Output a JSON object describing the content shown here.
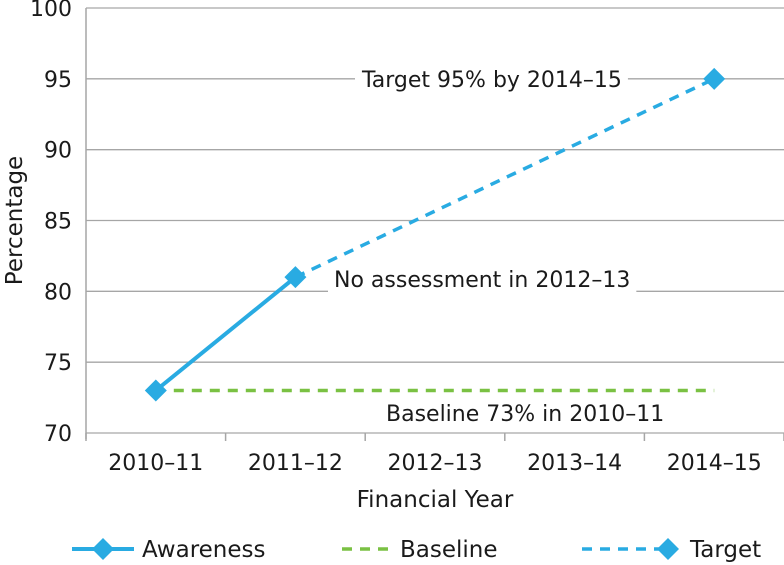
{
  "chart_data": {
    "type": "line",
    "title": "",
    "xlabel": "Financial Year",
    "ylabel": "Percentage",
    "categories": [
      "2010–11",
      "2011–12",
      "2012–13",
      "2013–14",
      "2014–15"
    ],
    "yticks": [
      "70",
      "75",
      "80",
      "85",
      "90",
      "95",
      "100"
    ],
    "ylim": [
      70,
      100
    ],
    "grid": true,
    "legend_position": "bottom",
    "series": [
      {
        "name": "Awareness",
        "style": "solid",
        "markers": true,
        "color": "#29abe2",
        "x": [
          "2010–11",
          "2011–12"
        ],
        "values": [
          73,
          81
        ]
      },
      {
        "name": "Baseline",
        "style": "dashed",
        "markers": false,
        "color": "#7ac143",
        "x": [
          "2010–11",
          "2014–15"
        ],
        "values": [
          73,
          73
        ]
      },
      {
        "name": "Target",
        "style": "dashed",
        "markers": true,
        "color": "#29abe2",
        "x": [
          "2011–12",
          "2014–15"
        ],
        "values": [
          81,
          95
        ]
      }
    ],
    "annotations": [
      {
        "text": "Target 95% by 2014–15"
      },
      {
        "text": "No assessment in 2012–13"
      },
      {
        "text": "Baseline 73% in 2010–11"
      }
    ]
  }
}
